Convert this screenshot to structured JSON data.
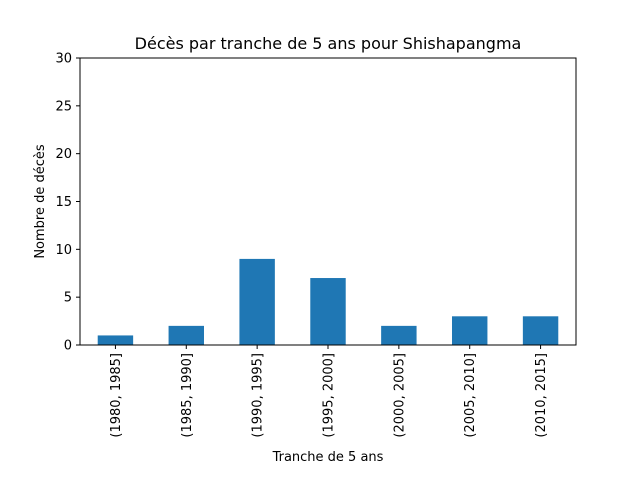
{
  "chart_data": {
    "type": "bar",
    "title": "Décès par tranche de 5 ans pour Shishapangma",
    "xlabel": "Tranche de 5 ans",
    "ylabel": "Nombre de décès",
    "categories": [
      "(1980, 1985]",
      "(1985, 1990]",
      "(1990, 1995]",
      "(1995, 2000]",
      "(2000, 2005]",
      "(2005, 2010]",
      "(2010, 2015]"
    ],
    "values": [
      1,
      2,
      9,
      7,
      2,
      3,
      3
    ],
    "ylim": [
      0,
      30
    ],
    "yticks": [
      0,
      5,
      10,
      15,
      20,
      25,
      30
    ],
    "grid": false,
    "bar_color": "#1f77b4"
  }
}
